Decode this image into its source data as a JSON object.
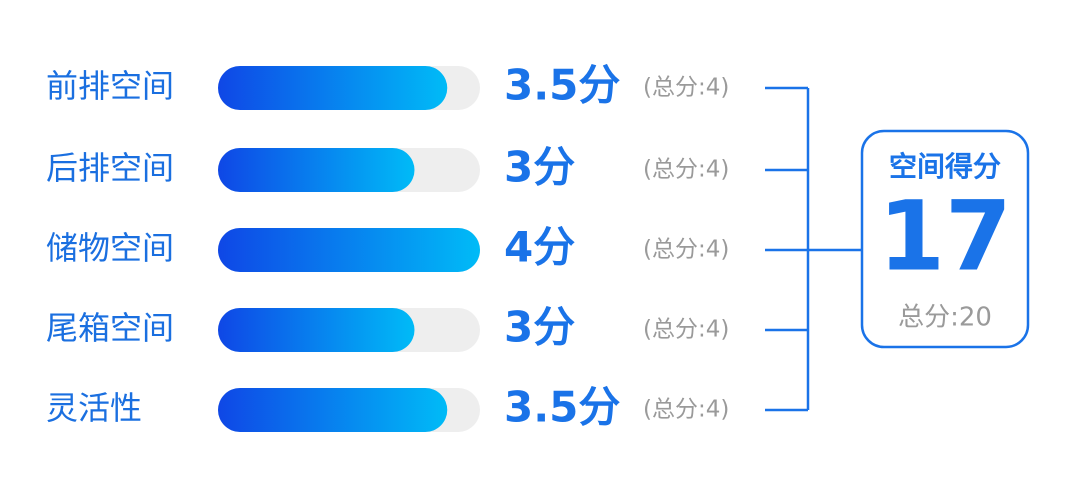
{
  "chart_data": {
    "type": "bar",
    "orientation": "horizontal",
    "categories": [
      "前排空间",
      "后排空间",
      "储物空间",
      "尾箱空间",
      "灵活性"
    ],
    "values": [
      3.5,
      3,
      4,
      3,
      3.5
    ],
    "value_labels": [
      "3.5分",
      "3分",
      "4分",
      "3分",
      "3.5分"
    ],
    "max_labels": [
      "(总分:4)",
      "(总分:4)",
      "(总分:4)",
      "(总分:4)",
      "(总分:4)"
    ],
    "xlim": [
      0,
      4
    ],
    "colors": [
      "#0f47e6",
      "#00bbf7"
    ],
    "total_title": "空间得分",
    "total_value": 17,
    "total_label": "总分:20"
  }
}
